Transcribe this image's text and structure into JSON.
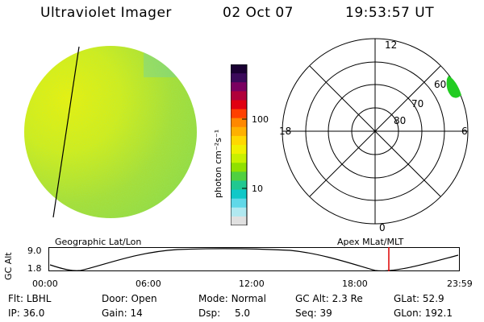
{
  "header": {
    "title": "Ultraviolet Imager",
    "date": "02 Oct 07",
    "time": "19:53:57 UT"
  },
  "colorbar": {
    "unit_label": "photon cm⁻²s⁻¹",
    "ticks": [
      "100",
      "10"
    ],
    "colors": [
      "#1a0033",
      "#3a0a5a",
      "#7a0060",
      "#b0003a",
      "#e00010",
      "#ff4000",
      "#ff8800",
      "#ffb000",
      "#ffd800",
      "#f0f000",
      "#c8f000",
      "#90e000",
      "#50d040",
      "#20c890",
      "#10c8c8",
      "#60d8e8",
      "#b0e8f0",
      "#e0e0e0"
    ]
  },
  "polar_plot": {
    "mlt_labels": {
      "top": "12",
      "bottom": "0",
      "left": "18",
      "right": "6"
    },
    "lat_labels": [
      "60",
      "70",
      "80"
    ]
  },
  "timeline": {
    "left_title": "Geographic Lat/Lon",
    "right_title": "Apex MLat/MLT",
    "ylabel": "GC Alt",
    "ytick_top": "9.0",
    "ytick_bottom": "1.8",
    "xticks": [
      "00:00",
      "06:00",
      "12:00",
      "18:00",
      "23:59"
    ],
    "marker_color": "#dd0000"
  },
  "info": {
    "flt_label": "Flt:",
    "flt_value": "LBHL",
    "ip_label": "IP:",
    "ip_value": "36.0",
    "door_label": "Door:",
    "door_value": "Open",
    "gain_label": "Gain:",
    "gain_value": "14",
    "mode_label": "Mode:",
    "mode_value": "Normal",
    "dsp_label": "Dsp:",
    "dsp_value": "5.0",
    "gcalt_label": "GC Alt:",
    "gcalt_value": "2.3 Re",
    "seq_label": "Seq:",
    "seq_value": "39",
    "glat_label": "GLat:",
    "glat_value": "52.9",
    "glon_label": "GLon:",
    "glon_value": "192.1"
  }
}
